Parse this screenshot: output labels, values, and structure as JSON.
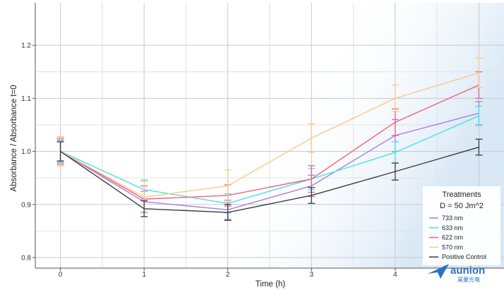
{
  "chart_data": {
    "type": "line",
    "xlabel": "Time (h)",
    "ylabel": "Absorbance / Absorbance t=0",
    "x": [
      0,
      1,
      2,
      3,
      4,
      5
    ],
    "xlim": [
      -0.3,
      5.3
    ],
    "ylim": [
      0.78,
      1.28
    ],
    "x_ticks": [
      0,
      1,
      2,
      3,
      4
    ],
    "y_ticks": [
      0.8,
      0.9,
      1.0,
      1.1,
      1.2
    ],
    "y_tick_labels": [
      "0.8",
      "0.9",
      "1.0",
      "1.1",
      "1.2"
    ],
    "grid": true,
    "error_bars": true,
    "legend": {
      "title": "Treatments",
      "subtitle": "D = 50 Jm^2",
      "placement": "bottom-right"
    },
    "series": [
      {
        "name": "733 nm",
        "color": "#a97fe0",
        "values": [
          1.0,
          0.905,
          0.89,
          0.935,
          1.03,
          1.072
        ],
        "errors": [
          0.022,
          0.02,
          0.018,
          0.02,
          0.03,
          0.022
        ]
      },
      {
        "name": "633 nm",
        "color": "#45e2ea",
        "values": [
          1.0,
          0.928,
          0.902,
          0.948,
          0.998,
          1.067
        ],
        "errors": [
          0.02,
          0.018,
          0.018,
          0.02,
          0.02,
          0.018
        ]
      },
      {
        "name": "622 nm",
        "color": "#f2607a",
        "values": [
          1.0,
          0.91,
          0.917,
          0.948,
          1.055,
          1.125
        ],
        "errors": [
          0.025,
          0.025,
          0.02,
          0.025,
          0.025,
          0.025
        ]
      },
      {
        "name": "570 nm",
        "color": "#f8c98a",
        "values": [
          1.0,
          0.914,
          0.935,
          1.025,
          1.1,
          1.148
        ],
        "errors": [
          0.028,
          0.03,
          0.03,
          0.027,
          0.025,
          0.028
        ]
      },
      {
        "name": "Positive Control",
        "color": "#3d3d3d",
        "values": [
          1.0,
          0.892,
          0.885,
          0.917,
          0.962,
          1.008
        ],
        "errors": [
          0.018,
          0.015,
          0.015,
          0.015,
          0.016,
          0.015
        ]
      }
    ]
  },
  "watermark": {
    "text": "aunion",
    "subtext": "昊量光电",
    "icon": "paper-plane-logo"
  }
}
